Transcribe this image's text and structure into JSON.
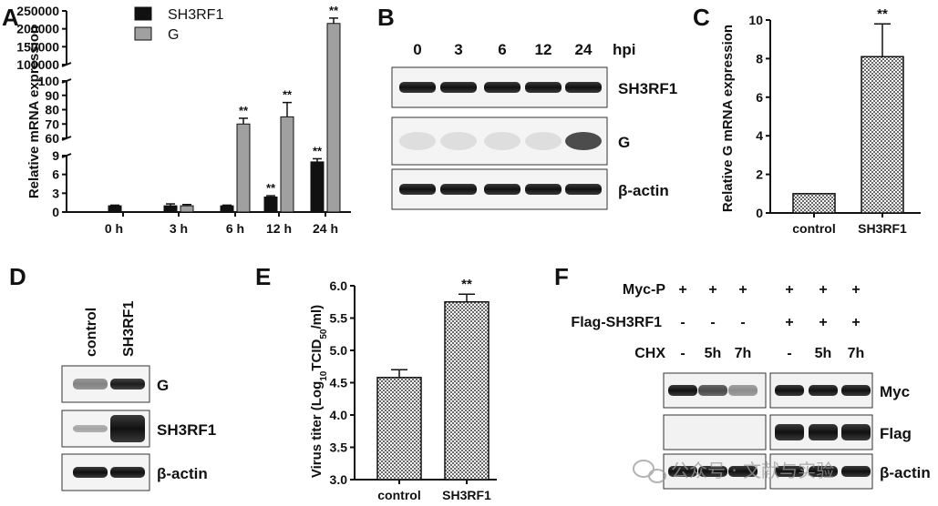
{
  "panels": {
    "A": "A",
    "B": "B",
    "C": "C",
    "D": "D",
    "E": "E",
    "F": "F"
  },
  "chart_data": [
    {
      "panel": "A",
      "type": "bar",
      "ylabel": "Relative mRNA expression",
      "categories": [
        "0 h",
        "3 h",
        "6 h",
        "12 h",
        "24 h"
      ],
      "series": [
        {
          "name": "SH3RF1",
          "color": "#111111",
          "values": [
            1,
            1,
            1,
            2.4,
            8
          ],
          "errors": [
            0.1,
            0.3,
            0.1,
            0.2,
            0.5
          ]
        },
        {
          "name": "G",
          "color": "#a0a0a0",
          "values": [
            null,
            1,
            70,
            75,
            215000
          ],
          "errors": [
            null,
            0.2,
            4,
            10,
            15000
          ]
        }
      ],
      "significance": [
        {
          "series": "SH3RF1",
          "index": 3,
          "label": "**"
        },
        {
          "series": "SH3RF1",
          "index": 4,
          "label": "**"
        },
        {
          "series": "G",
          "index": 2,
          "label": "**"
        },
        {
          "series": "G",
          "index": 3,
          "label": "**"
        },
        {
          "series": "G",
          "index": 4,
          "label": "**"
        }
      ],
      "y_segments": [
        {
          "range": [
            0,
            9
          ],
          "ticks": [
            "0",
            "3",
            "6",
            "9"
          ]
        },
        {
          "range": [
            60,
            100
          ],
          "ticks": [
            "60",
            "70",
            "80",
            "90",
            "100"
          ]
        },
        {
          "range": [
            100000,
            250000
          ],
          "ticks": [
            "100000",
            "150000",
            "200000",
            "250000"
          ]
        }
      ]
    },
    {
      "panel": "C",
      "type": "bar",
      "ylabel": "Relative G mRNA expression",
      "categories": [
        "control",
        "SH3RF1"
      ],
      "values": [
        1,
        8.1
      ],
      "errors": [
        0,
        1.7
      ],
      "ylim": [
        0,
        10
      ],
      "yticks": [
        "0",
        "2",
        "4",
        "6",
        "8",
        "10"
      ],
      "significance": [
        {
          "index": 1,
          "label": "**"
        }
      ]
    },
    {
      "panel": "E",
      "type": "bar",
      "ylabel_main": "Virus titer (Log",
      "ylabel_sub": "10",
      "ylabel_rest": "TCID",
      "ylabel_sub2": "50",
      "ylabel_end": "/ml)",
      "categories": [
        "control",
        "SH3RF1"
      ],
      "values": [
        4.58,
        5.75
      ],
      "errors": [
        0.12,
        0.12
      ],
      "ylim": [
        3.0,
        6.0
      ],
      "yticks": [
        "3.0",
        "3.5",
        "4.0",
        "4.5",
        "5.0",
        "5.5",
        "6.0"
      ],
      "significance": [
        {
          "index": 1,
          "label": "**"
        }
      ]
    }
  ],
  "blot_B": {
    "time_label": "hpi",
    "times": [
      "0",
      "3",
      "6",
      "12",
      "24"
    ],
    "rows": [
      "SH3RF1",
      "G",
      "β-actin"
    ]
  },
  "blot_D": {
    "lanes": [
      "control",
      "SH3RF1"
    ],
    "rows": [
      "G",
      "SH3RF1",
      "β-actin"
    ]
  },
  "blot_F": {
    "conditions": [
      {
        "label": "Myc-P",
        "values": [
          "+",
          "+",
          "+",
          "+",
          "+",
          "+"
        ]
      },
      {
        "label": "Flag-SH3RF1",
        "values": [
          "-",
          "-",
          "-",
          "+",
          "+",
          "+"
        ]
      },
      {
        "label": "CHX",
        "values": [
          "-",
          "5h",
          "7h",
          "-",
          "5h",
          "7h"
        ]
      }
    ],
    "rows": [
      "Myc",
      "Flag",
      "β-actin"
    ]
  },
  "watermark": "公众号 · 文献与实验"
}
